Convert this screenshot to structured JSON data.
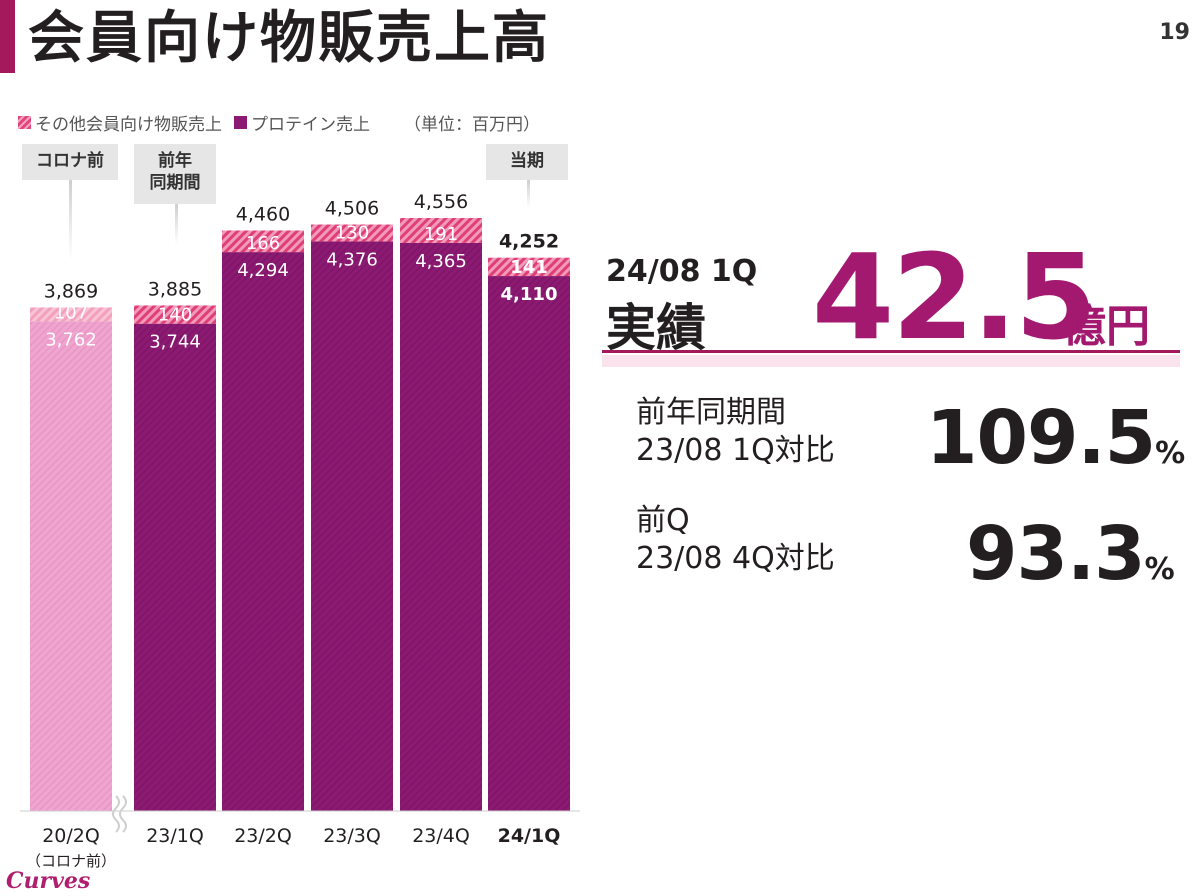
{
  "page": {
    "title": "会員向け物販売上高",
    "number": "19"
  },
  "legend": {
    "other_label": "その他会員向け物販売上",
    "protein_label": "プロテイン売上",
    "unit": "（単位：百万円）"
  },
  "callouts": [
    {
      "label": "コロナ前"
    },
    {
      "label": "前年\n同期間"
    },
    {
      "label": "当期"
    }
  ],
  "chart_data": {
    "type": "bar",
    "stacked": true,
    "categories": [
      "20/2Q",
      "23/1Q",
      "23/2Q",
      "23/3Q",
      "23/4Q",
      "24/1Q"
    ],
    "category_sublabels": [
      "（コロナ前）",
      "",
      "",
      "",
      "",
      ""
    ],
    "series": [
      {
        "name": "プロテイン売上",
        "values": [
          3762,
          3744,
          4294,
          4376,
          4365,
          4110
        ]
      },
      {
        "name": "その他会員向け物販売上",
        "values": [
          107,
          140,
          166,
          130,
          191,
          141
        ]
      }
    ],
    "totals": [
      3869,
      3885,
      4460,
      4506,
      4556,
      4252
    ],
    "ylim": [
      0,
      4556
    ],
    "colors": {
      "protein": "#8c1a72",
      "other": "#e0457b",
      "precovid": "#f0a4d0",
      "precovid_other": "#f7b3c7"
    }
  },
  "kpi": {
    "period": "24/08 1Q",
    "label": "実績",
    "value": "42.5",
    "unit": "億円",
    "comparisons": [
      {
        "label_line1": "前年同期間",
        "label_line2": "23/08 1Q対比",
        "value": "109.5",
        "unit": "%"
      },
      {
        "label_line1": "前Q",
        "label_line2": "23/08 4Q対比",
        "value": "93.3",
        "unit": "%"
      }
    ]
  },
  "logo": {
    "text": "Curves"
  }
}
